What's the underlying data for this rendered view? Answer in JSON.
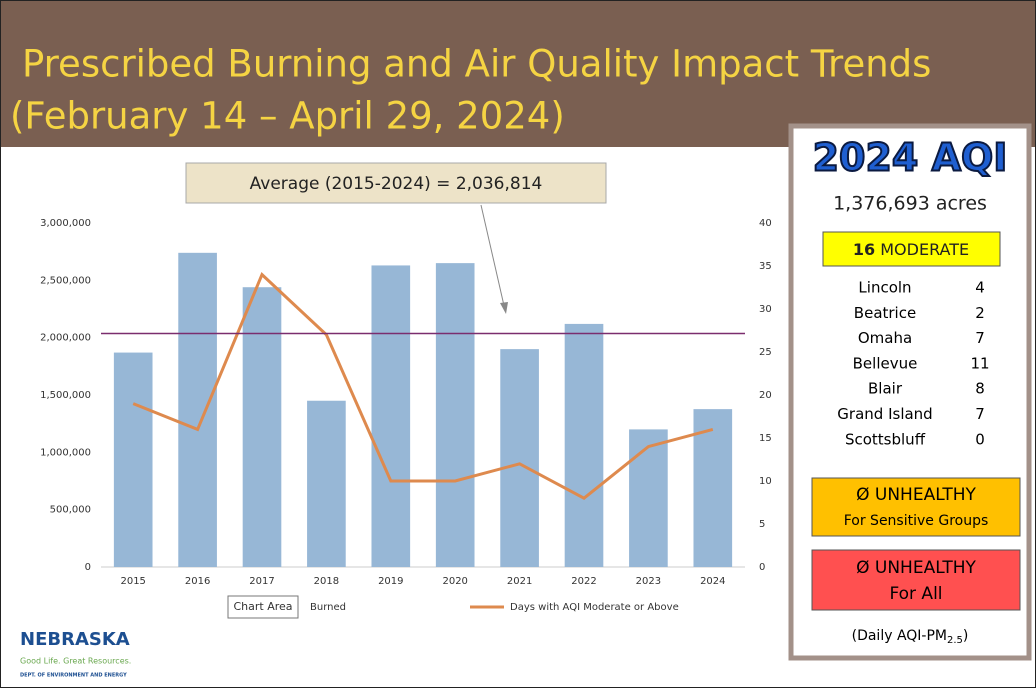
{
  "chart_data": {
    "type": "bar",
    "title": "Prescribed Burning and Air Quality Impact Trends",
    "subtitle": "(February 14 – April 29, 2024)",
    "categories": [
      "2015",
      "2016",
      "2017",
      "2018",
      "2019",
      "2020",
      "2021",
      "2022",
      "2023",
      "2024"
    ],
    "series": [
      {
        "name": "Burned",
        "color": "#97b7d6",
        "type": "bar",
        "values": [
          1870000,
          2740000,
          2440000,
          1450000,
          2630000,
          2650000,
          1900000,
          2120000,
          1200000,
          1376693
        ]
      },
      {
        "name": "Days with AQI Moderate or Above",
        "color": "#de8a4e",
        "type": "line",
        "axis": "y2",
        "values": [
          19,
          16,
          34,
          27,
          10,
          10,
          12,
          8,
          14,
          16
        ]
      }
    ],
    "ylim": [
      0,
      3000000
    ],
    "yticks": [
      0,
      {
        "value": 500000,
        "label": "500,000"
      },
      {
        "value": 1000000,
        "label": "1,000,000"
      },
      {
        "value": 1500000,
        "label": "1,500,000"
      },
      {
        "value": 2000000,
        "label": "2,000,000"
      },
      {
        "value": 2500000,
        "label": "2,500,000"
      },
      {
        "value": 3000000,
        "label": "3,000,000"
      }
    ],
    "y2lim": [
      0,
      40
    ],
    "y2ticks": [
      0,
      5,
      10,
      15,
      20,
      25,
      30,
      35,
      40
    ],
    "average": {
      "label": "Average (2015-2024) = 2,036,814",
      "value": 2036814,
      "color": "#7b2d6e"
    },
    "tooltip": "Chart Area"
  },
  "panel": {
    "title": "2024 AQI",
    "acres": "1,376,693 acres",
    "moderate": {
      "count": "16",
      "label": "MODERATE"
    },
    "cities": [
      [
        "Lincoln",
        "4"
      ],
      [
        "Beatrice",
        "2"
      ],
      [
        "Omaha",
        "7"
      ],
      [
        "Bellevue",
        "11"
      ],
      [
        "Blair",
        "8"
      ],
      [
        "Grand Island",
        "7"
      ],
      [
        "Scottsbluff",
        "0"
      ]
    ],
    "unhealthy_sensitive": [
      "Ø UNHEALTHY",
      "For Sensitive Groups"
    ],
    "unhealthy_all": [
      "Ø UNHEALTHY",
      "For All"
    ],
    "footnote": {
      "main": "(Daily AQI-PM",
      "sub": "2.5",
      "close": ")"
    }
  },
  "logo": {
    "name": "NEBRASKA",
    "tagline": "Good Life. Great Resources.",
    "dept": "DEPT. OF ENVIRONMENT AND ENERGY"
  }
}
